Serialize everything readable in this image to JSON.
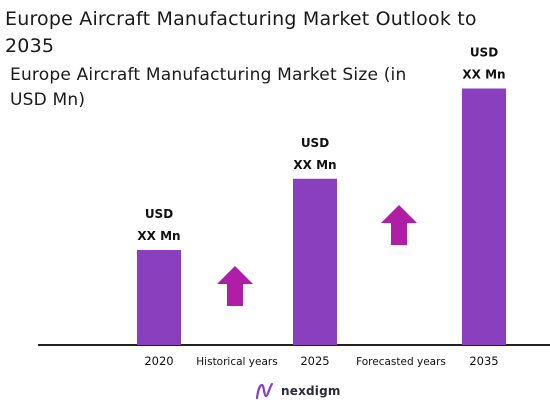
{
  "title": "Europe Aircraft Manufacturing Market Outlook to 2035",
  "subtitle": "Europe Aircraft Manufacturing Market Size (in USD Mn)",
  "logo": {
    "text": "nexdigm",
    "icon": "nexdigm-logo-icon"
  },
  "colors": {
    "bar": "#8a3fbf",
    "arrow": "#b01ea8",
    "axis": "#222222"
  },
  "chart_data": {
    "type": "bar",
    "categories": [
      "2020",
      "2025",
      "2035"
    ],
    "values": [
      1.0,
      1.75,
      2.7
    ],
    "value_note": "relative bar heights; actual values shown as placeholders",
    "data_labels": [
      [
        "USD",
        "XX Mn"
      ],
      [
        "USD",
        "XX Mn"
      ],
      [
        "USD",
        "XX Mn"
      ]
    ],
    "period_labels": [
      "Historical years",
      "Forecasted years"
    ],
    "grid": false,
    "legend": "none"
  }
}
